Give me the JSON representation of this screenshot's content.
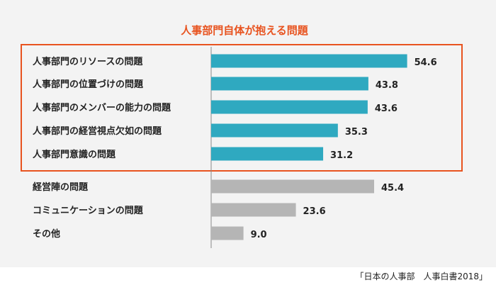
{
  "chart_data": {
    "type": "bar",
    "orientation": "horizontal",
    "title": "人事部門自体が抱える問題",
    "categories": [
      "人事部門のリソースの問題",
      "人事部門の位置づけの問題",
      "人事部門のメンバーの能力の問題",
      "人事部門の経営視点欠如の問題",
      "人事部門意識の問題",
      "経営陣の問題",
      "コミュニケーションの問題",
      "その他"
    ],
    "values": [
      54.6,
      43.8,
      43.6,
      35.3,
      31.2,
      45.4,
      23.6,
      9.0
    ],
    "value_labels": [
      "54.6",
      "43.8",
      "43.6",
      "35.3",
      "31.2",
      "45.4",
      "23.6",
      "9.0"
    ],
    "highlighted_count": 5,
    "xlim": [
      0,
      60
    ],
    "grid": false,
    "colors": {
      "highlight_bar": "#2fa9c0",
      "other_bar": "#b5b5b5",
      "highlight_frame": "#e8531f",
      "title": "#e8531f",
      "axis": "#888888"
    }
  },
  "source": "「日本の人事部　人事白書2018」"
}
